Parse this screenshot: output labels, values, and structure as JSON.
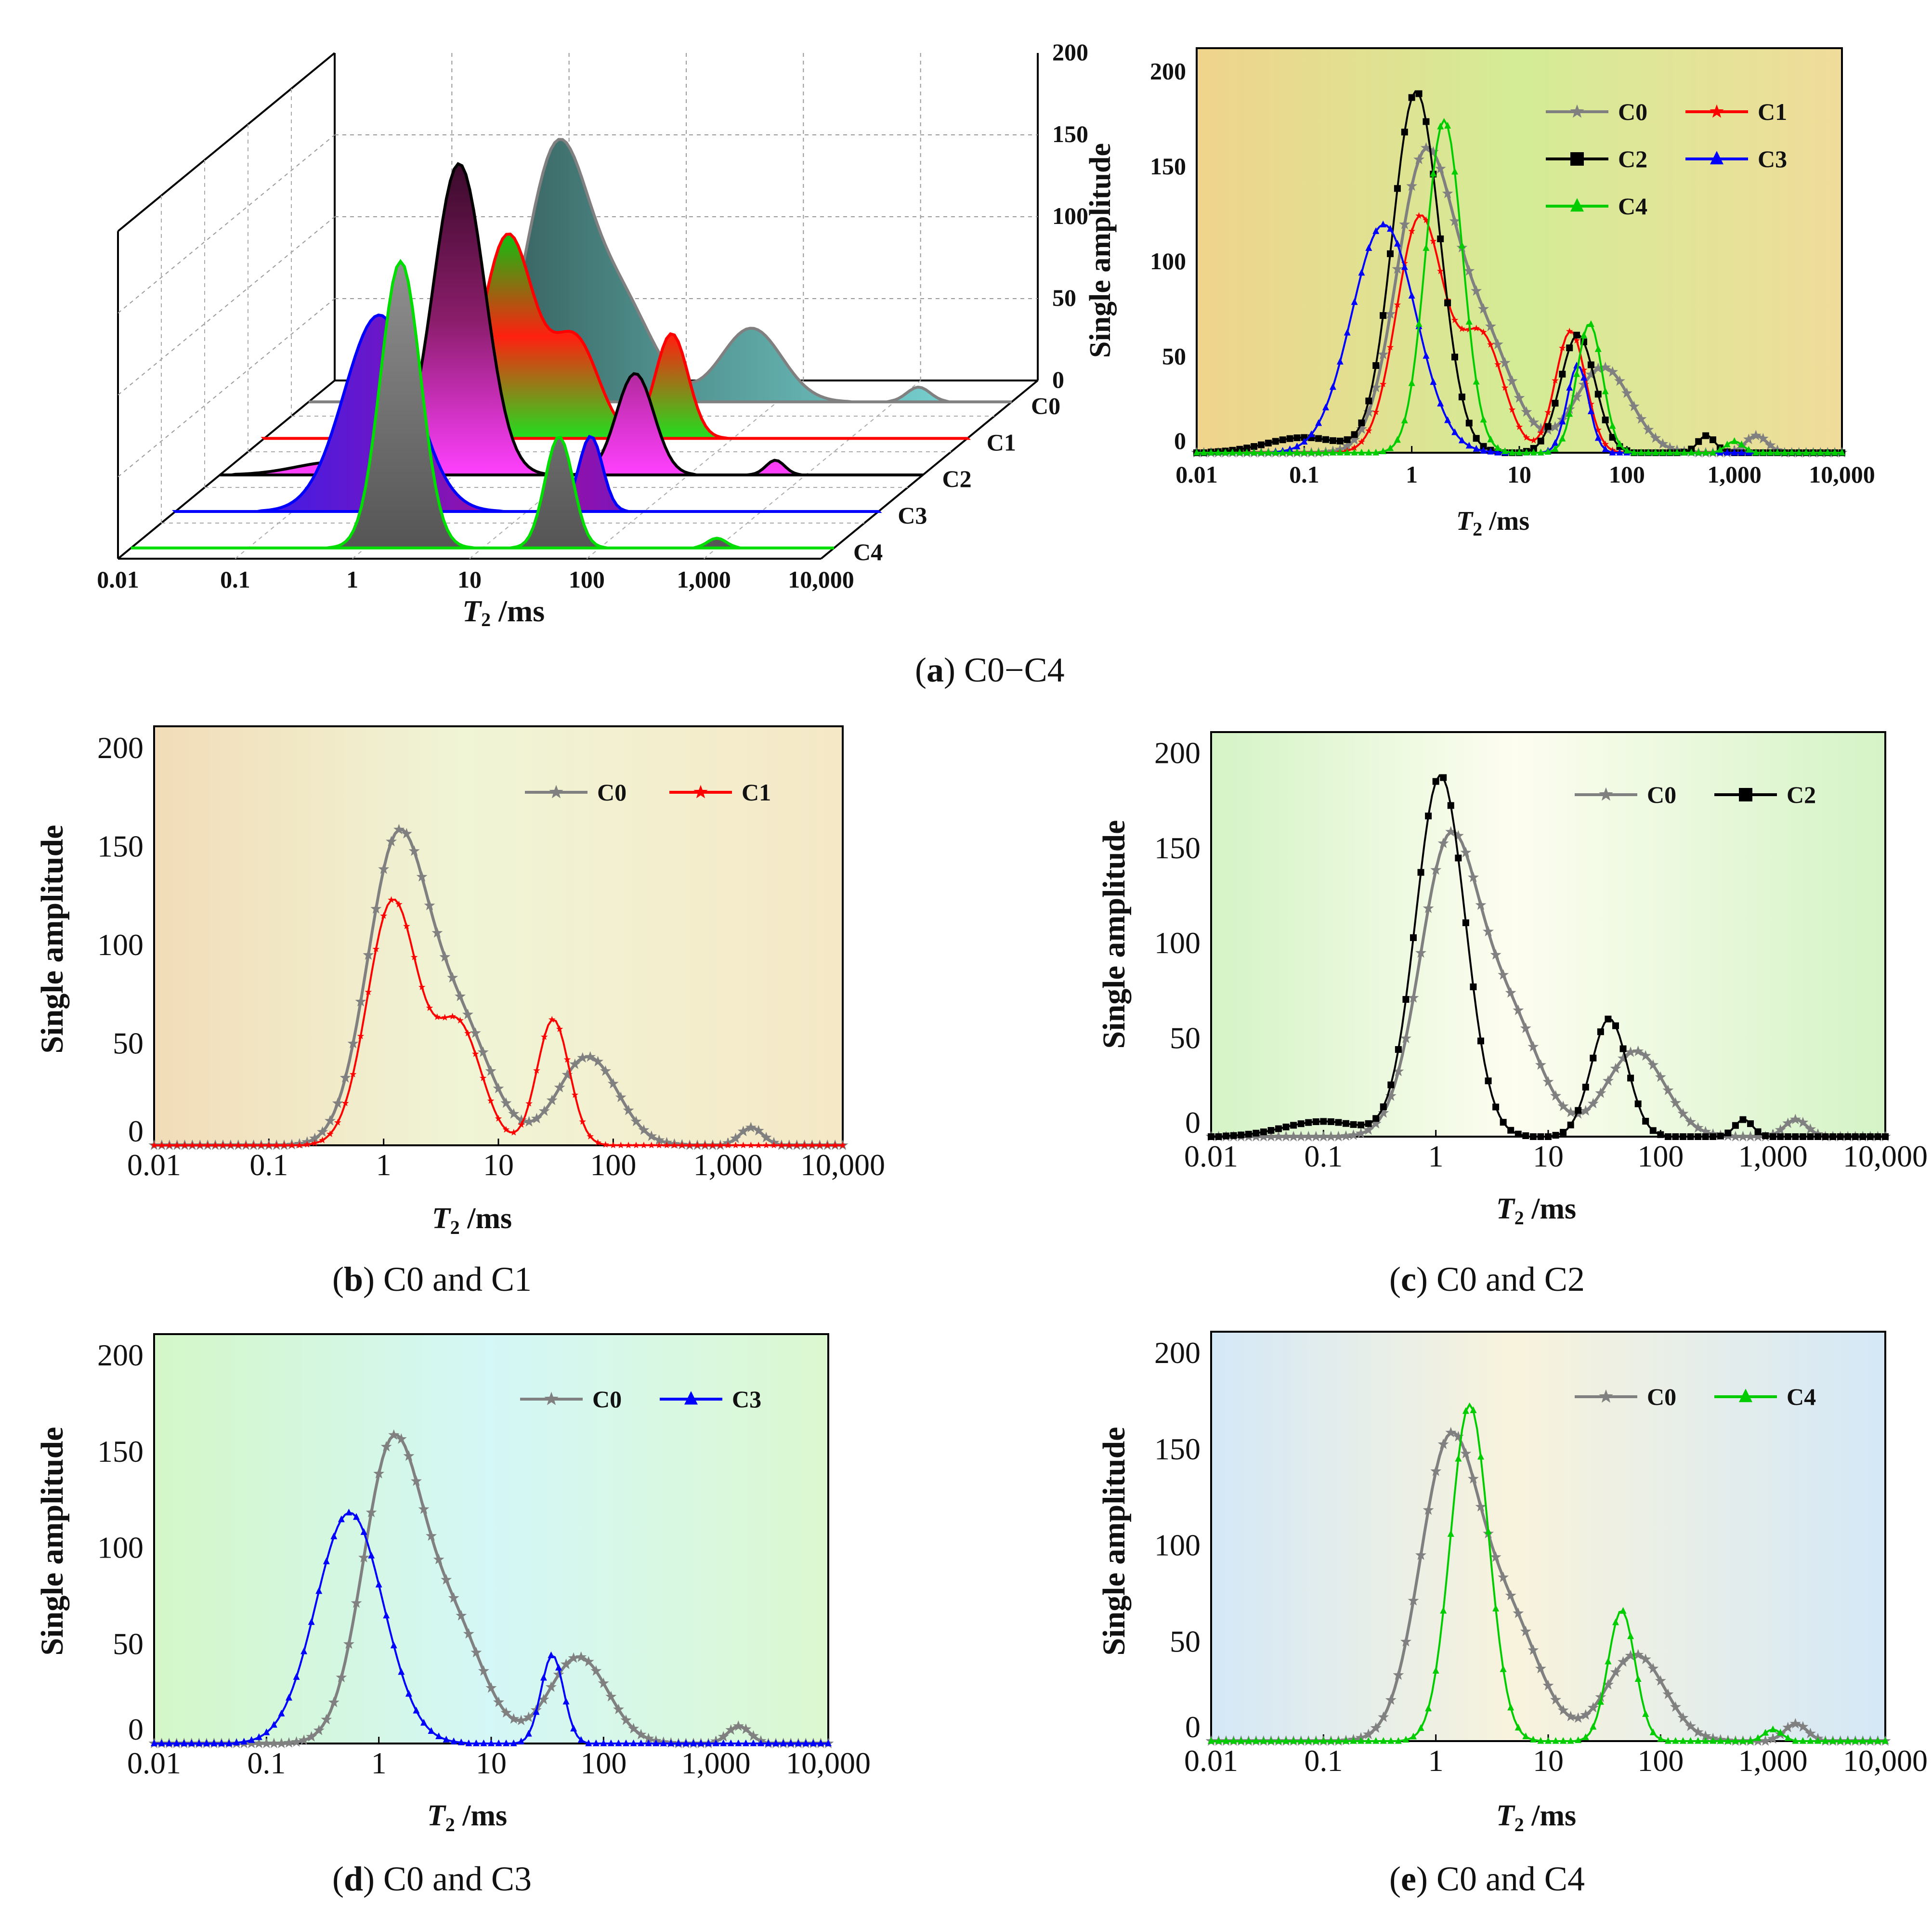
{
  "captions": {
    "a": {
      "letter": "a",
      "text": "C0−C4"
    },
    "b": {
      "letter": "b",
      "text": "C0 and C1"
    },
    "c": {
      "letter": "c",
      "text": "C0 and C2"
    },
    "d": {
      "letter": "d",
      "text": "C0 and C3"
    },
    "e": {
      "letter": "e",
      "text": "C0 and C4"
    }
  },
  "panel_a3d": {
    "xlabel_sym": "T",
    "xlabel_sub": "2",
    "xlabel_unit": " /ms",
    "x_tick_labels": [
      "0.01",
      "0.1",
      "1",
      "10",
      "100",
      "1,000",
      "10,000"
    ],
    "z_tick_labels": [
      "0",
      "50",
      "100",
      "150",
      "200"
    ],
    "row_labels": [
      "C0",
      "C1",
      "C2",
      "C3",
      "C4"
    ]
  },
  "chart_data": [
    {
      "panel": "a",
      "type": "line",
      "title": "",
      "xlabel": "T2 /ms",
      "ylabel": "Single amplitude",
      "xscale": "log",
      "xlim": [
        0.01,
        10000
      ],
      "ylim": [
        0,
        200
      ],
      "x_tick_labels": [
        "0.01",
        "0.1",
        "1",
        "10",
        "100",
        "1,000",
        "10,000"
      ],
      "y_tick_labels": [
        "0",
        "50",
        "100",
        "150",
        "200"
      ],
      "legend": "top-right",
      "series": [
        {
          "name": "C0",
          "color": "#808080",
          "marker": "star",
          "peaks": [
            [
              1.3,
              150,
              0.26
            ],
            [
              4.5,
              60,
              0.28
            ],
            [
              60,
              45,
              0.26
            ],
            [
              1600,
              9,
              0.1
            ]
          ]
        },
        {
          "name": "C1",
          "color": "#ff0000",
          "marker": "star",
          "peaks": [
            [
              1.2,
              124,
              0.22
            ],
            [
              4.5,
              60,
              0.2
            ],
            [
              30,
              64,
              0.14
            ]
          ]
        },
        {
          "name": "C2",
          "color": "#000000",
          "marker": "square",
          "peaks": [
            [
              1.1,
              190,
              0.22
            ],
            [
              0.1,
              8,
              0.35
            ],
            [
              35,
              62,
              0.16
            ],
            [
              550,
              9,
              0.08
            ]
          ]
        },
        {
          "name": "C3",
          "color": "#0000ff",
          "marker": "triangle",
          "peaks": [
            [
              0.55,
              120,
              0.3
            ],
            [
              35,
              46,
              0.1
            ]
          ]
        },
        {
          "name": "C4",
          "color": "#00cc00",
          "marker": "triangle",
          "peaks": [
            [
              2.0,
              175,
              0.17
            ],
            [
              45,
              68,
              0.12
            ],
            [
              1000,
              6,
              0.08
            ]
          ]
        }
      ]
    },
    {
      "panel": "b",
      "type": "line",
      "xlabel": "T2 /ms",
      "ylabel": "Single amplitude",
      "xscale": "log",
      "xlim": [
        0.01,
        10000
      ],
      "ylim": [
        0,
        200
      ],
      "legend": "top-right",
      "series_names": [
        "C0",
        "C1"
      ]
    },
    {
      "panel": "c",
      "type": "line",
      "xlabel": "T2 /ms",
      "ylabel": "Single amplitude",
      "xscale": "log",
      "xlim": [
        0.01,
        10000
      ],
      "ylim": [
        0,
        200
      ],
      "legend": "top-right",
      "series_names": [
        "C0",
        "C2"
      ]
    },
    {
      "panel": "d",
      "type": "line",
      "xlabel": "T2 /ms",
      "ylabel": "Single amplitude",
      "xscale": "log",
      "xlim": [
        0.01,
        10000
      ],
      "ylim": [
        0,
        200
      ],
      "legend": "top-right",
      "series_names": [
        "C0",
        "C3"
      ]
    },
    {
      "panel": "e",
      "type": "line",
      "xlabel": "T2 /ms",
      "ylabel": "Single amplitude",
      "xscale": "log",
      "xlim": [
        0.01,
        10000
      ],
      "ylim": [
        0,
        200
      ],
      "legend": "top-right",
      "series_names": [
        "C0",
        "C4"
      ]
    }
  ]
}
